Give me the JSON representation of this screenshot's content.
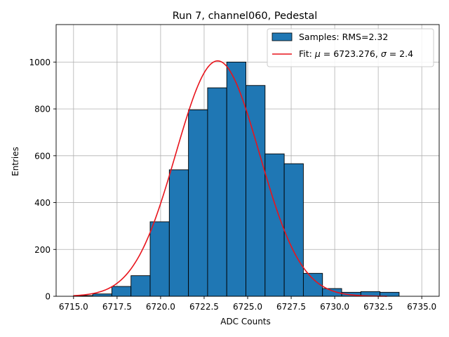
{
  "chart_data": {
    "type": "bar",
    "title": "Run 7, channel060, Pedestal",
    "xlabel": "ADC Counts",
    "ylabel": "Entries",
    "xlim": [
      6714.0,
      6736.0
    ],
    "ylim": [
      0,
      1160
    ],
    "grid": true,
    "legend_position": "top-right",
    "x_ticks": [
      6715.0,
      6717.5,
      6720.0,
      6722.5,
      6725.0,
      6727.5,
      6730.0,
      6732.5,
      6735.0
    ],
    "x_tick_labels": [
      "6715.0",
      "6717.5",
      "6720.0",
      "6722.5",
      "6725.0",
      "6727.5",
      "6730.0",
      "6732.5",
      "6735.0"
    ],
    "y_ticks": [
      0,
      200,
      400,
      600,
      800,
      1000
    ],
    "y_tick_labels": [
      "0",
      "200",
      "400",
      "600",
      "800",
      "1000"
    ],
    "bin_width": 1.1,
    "bin_starts": [
      6715.0,
      6716.1,
      6717.2,
      6718.3,
      6719.4,
      6720.5,
      6721.6,
      6722.7,
      6723.8,
      6724.9,
      6726.0,
      6727.1,
      6728.2,
      6729.3,
      6730.4,
      6731.5,
      6732.6
    ],
    "series": [
      {
        "name": "Samples: RMS=2.32",
        "kind": "histogram",
        "color": "#1f77b4",
        "edge_color": "#000000",
        "values": [
          3,
          10,
          42,
          88,
          318,
          540,
          796,
          890,
          1000,
          900,
          608,
          566,
          98,
          33,
          17,
          20,
          17
        ]
      },
      {
        "name": "Fit: μ = 6723.276, σ = 2.4",
        "legend_label_prefix": "Fit: ",
        "legend_mu_symbol": "μ",
        "legend_mu_value": " = 6723.276, ",
        "legend_sigma_symbol": "σ",
        "legend_sigma_value": " = 2.4",
        "kind": "gaussian",
        "color": "#e8141c",
        "mu": 6723.276,
        "sigma": 2.4,
        "amplitude": 1005,
        "x_range": [
          6715.0,
          6733.0
        ]
      }
    ]
  }
}
